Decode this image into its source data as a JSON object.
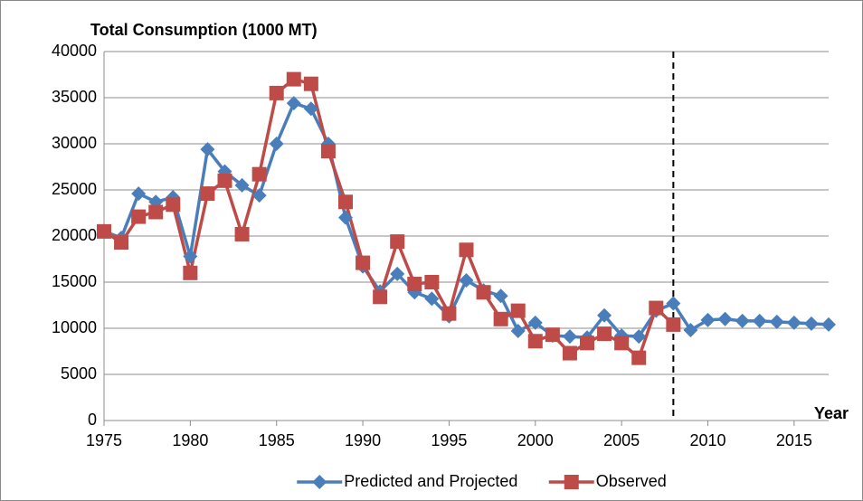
{
  "chart_data": {
    "type": "line",
    "title": "Total Consumption (1000 MT)",
    "x_label": "Year",
    "x": [
      1975,
      1976,
      1977,
      1978,
      1979,
      1980,
      1981,
      1982,
      1983,
      1984,
      1985,
      1986,
      1987,
      1988,
      1989,
      1990,
      1991,
      1992,
      1993,
      1994,
      1995,
      1996,
      1997,
      1998,
      1999,
      2000,
      2001,
      2002,
      2003,
      2004,
      2005,
      2006,
      2007,
      2008,
      2009,
      2010,
      2011,
      2012,
      2013,
      2014,
      2015,
      2016,
      2017
    ],
    "series": [
      {
        "name": "Predicted and Projected",
        "color": "#4a7ebb",
        "marker": "diamond",
        "values": [
          20500,
          19800,
          24600,
          23700,
          24200,
          17800,
          29400,
          27000,
          25500,
          24400,
          30000,
          34400,
          33800,
          30000,
          22000,
          16700,
          14000,
          15900,
          13900,
          13200,
          11300,
          15200,
          14100,
          13500,
          9700,
          10600,
          9200,
          9100,
          9000,
          11400,
          9200,
          9100,
          11900,
          12700,
          9800,
          10900,
          11000,
          10800,
          10800,
          10700,
          10600,
          10500,
          10400
        ]
      },
      {
        "name": "Observed",
        "color": "#be4b48",
        "marker": "square",
        "values": [
          20500,
          19300,
          22100,
          22600,
          23400,
          16000,
          24600,
          26000,
          20200,
          26700,
          35500,
          37000,
          36500,
          29200,
          23700,
          17100,
          13400,
          19400,
          14800,
          15000,
          11600,
          18500,
          13900,
          11000,
          11900,
          8600,
          9300,
          7300,
          8400,
          9400,
          8400,
          6800,
          12200,
          10400,
          null,
          null,
          null,
          null,
          null,
          null,
          null,
          null,
          null
        ]
      }
    ],
    "xlim": [
      1975,
      2017
    ],
    "xticks": [
      1975,
      1980,
      1985,
      1990,
      1995,
      2000,
      2005,
      2010,
      2015
    ],
    "ylim": [
      0,
      40000
    ],
    "yticks": [
      0,
      5000,
      10000,
      15000,
      20000,
      25000,
      30000,
      35000,
      40000
    ],
    "grid": true,
    "legend": "bottom",
    "reference_line_x": 2008
  }
}
